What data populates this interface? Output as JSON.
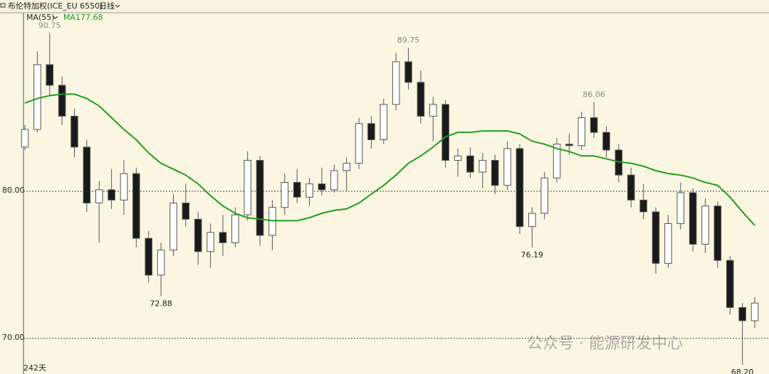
{
  "chart_data": {
    "type": "candlestick",
    "title": "布伦特加权(ICE_EU 6550)",
    "period": "日线",
    "indicator": "MA(55)",
    "bar_count_label": "242天",
    "watermark": "公众号 · 能源研发中心",
    "ylim": [
      67.58,
      92.03
    ],
    "yticks": [
      {
        "value": 70,
        "label": "70.00"
      },
      {
        "value": 80,
        "label": "80.00"
      }
    ],
    "grid": true,
    "up_color": "#ffffff",
    "down_color": "#1a1a1a",
    "edge_color": "#555555",
    "open": [
      83,
      84.2,
      88.6,
      87.2,
      85.1,
      83,
      79.2,
      80.1,
      79.4,
      81.2,
      76.8,
      74.3,
      76,
      79.2,
      78.1,
      75.9,
      77.2,
      76.5,
      78.4,
      82.1,
      77,
      78.9,
      80.6,
      79.6,
      80.5,
      80.1,
      81.4,
      81.9,
      84.6,
      83.5,
      85.9,
      88.8,
      87.4,
      85.1,
      85.9,
      82.1,
      82.4,
      81.3,
      82.1,
      80.4,
      82.9,
      77.6,
      78.5,
      80.9,
      83.2,
      83.1,
      85,
      84,
      82.8,
      81.1,
      79.4,
      78.6,
      75.1,
      77.8,
      79.9,
      76.4,
      79,
      75.3,
      72.1,
      71.2
    ],
    "high": [
      84.5,
      89.5,
      90.75,
      87.8,
      85.6,
      83.5,
      80.7,
      81.5,
      82.1,
      81.6,
      77.3,
      76.5,
      79.8,
      80.5,
      78.6,
      77.8,
      78.4,
      78.9,
      82.7,
      82.4,
      79.4,
      81.2,
      81.5,
      80.9,
      81.6,
      81.8,
      82.3,
      85,
      85.1,
      86.3,
      89.4,
      89.75,
      88.2,
      86.4,
      86.2,
      82.9,
      83,
      82.6,
      82.5,
      83.4,
      83.2,
      78.9,
      81.3,
      83.6,
      83.9,
      85.4,
      86.06,
      84.4,
      83.2,
      81.6,
      80.5,
      78.9,
      78.4,
      80.6,
      80.2,
      79.5,
      79.3,
      75.6,
      72.4,
      72.8
    ],
    "low": [
      82.8,
      84,
      86.5,
      84.5,
      82.3,
      78.6,
      76.5,
      78.8,
      78.4,
      76.2,
      73.8,
      72.88,
      75.6,
      77.6,
      75,
      74.8,
      75.6,
      76.2,
      78,
      76.3,
      76,
      78.4,
      79.2,
      79,
      79.7,
      79.9,
      80,
      81.5,
      82.9,
      83.2,
      85.5,
      86.9,
      84.6,
      83.4,
      81.6,
      81,
      80.9,
      80.2,
      79.8,
      80.1,
      77.1,
      76.19,
      78.1,
      80.6,
      82.5,
      82.8,
      83.6,
      82.3,
      80.6,
      78.9,
      78.1,
      74.4,
      74.8,
      77.4,
      75.9,
      75.8,
      74.8,
      71.6,
      68.2,
      70.7
    ],
    "close": [
      84.2,
      88.6,
      87.2,
      85.1,
      83,
      79.2,
      80.1,
      79.4,
      81.2,
      76.8,
      74.3,
      76,
      79.2,
      78.1,
      75.9,
      77.2,
      76.5,
      78.4,
      82.1,
      77,
      78.9,
      80.6,
      79.6,
      80.5,
      80.1,
      81.4,
      81.9,
      84.6,
      83.5,
      85.9,
      88.8,
      87.4,
      85.1,
      85.9,
      82.1,
      82.4,
      81.3,
      82.1,
      80.4,
      82.9,
      77.6,
      78.5,
      80.9,
      83.2,
      83.1,
      85,
      84,
      82.8,
      81.1,
      79.4,
      78.6,
      75.1,
      77.8,
      79.9,
      76.4,
      79,
      75.3,
      72.1,
      71.2,
      72.4
    ],
    "ma": {
      "name": "MA1",
      "color": "#1f9d1f",
      "values": [
        86.0,
        86.3,
        86.5,
        86.6,
        86.6,
        86.3,
        85.8,
        85.0,
        84.2,
        83.5,
        82.6,
        81.9,
        81.5,
        81.1,
        80.5,
        79.7,
        79.0,
        78.5,
        78.2,
        78.1,
        78.0,
        78.0,
        78.0,
        78.2,
        78.5,
        78.7,
        78.8,
        79.2,
        79.8,
        80.4,
        81.1,
        81.9,
        82.4,
        83.0,
        83.7,
        84.0,
        84.0,
        84.1,
        84.1,
        84.1,
        83.9,
        83.4,
        83.2,
        82.9,
        82.7,
        82.4,
        82.4,
        82.2,
        82.0,
        81.9,
        81.7,
        81.4,
        81.2,
        81.1,
        80.9,
        80.6,
        80.4,
        79.6,
        78.6,
        77.68
      ]
    },
    "annotations": [
      {
        "value": 90.75,
        "label": "90.75"
      },
      {
        "value": 89.75,
        "label": "89.75"
      },
      {
        "value": 86.06,
        "label": "86.06"
      },
      {
        "value": 76.19,
        "label": "76.19"
      },
      {
        "value": 72.88,
        "label": "72.88"
      },
      {
        "value": 68.2,
        "label": "68.20"
      }
    ]
  }
}
